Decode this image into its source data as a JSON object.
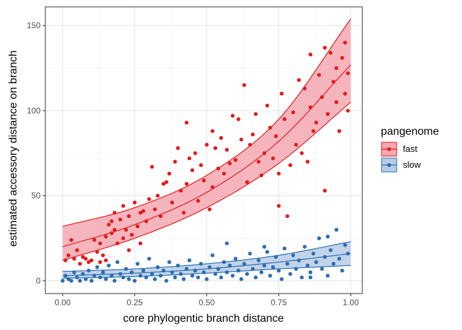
{
  "chart_data": {
    "type": "scatter",
    "title": "",
    "xlabel": "core phylogentic branch distance",
    "ylabel": "estimated accessory distance on branch",
    "xlim": [
      -0.06,
      1.04
    ],
    "ylim": [
      -7.5,
      161
    ],
    "xticks": [
      0.0,
      0.25,
      0.5,
      0.75,
      1.0
    ],
    "xtick_labels": [
      "0.00",
      "0.25",
      "0.50",
      "0.75",
      "1.00"
    ],
    "yticks": [
      0,
      50,
      100,
      150
    ],
    "ytick_labels": [
      "0",
      "50",
      "100",
      "150"
    ],
    "grid": true,
    "legend": {
      "title": "pangenome",
      "position": "right",
      "entries": [
        "fast",
        "slow"
      ]
    },
    "series": [
      {
        "name": "fast",
        "color": "#E31A1C",
        "fill": "#F4A8B0",
        "fit": {
          "x": [
            0.0,
            0.25,
            0.5,
            0.75,
            1.0
          ],
          "y": [
            20,
            33,
            52,
            82,
            127
          ]
        },
        "band_upper": {
          "x": [
            0.0,
            0.25,
            0.5,
            0.75,
            1.0
          ],
          "y": [
            32,
            43,
            62,
            95,
            154
          ]
        },
        "band_lower": {
          "x": [
            0.0,
            0.25,
            0.5,
            0.75,
            1.0
          ],
          "y": [
            12,
            25,
            43,
            69,
            105
          ]
        },
        "points": [
          [
            0.01,
            12
          ],
          [
            0.02,
            15
          ],
          [
            0.03,
            24
          ],
          [
            0.04,
            13
          ],
          [
            0.05,
            18
          ],
          [
            0.06,
            10
          ],
          [
            0.07,
            14
          ],
          [
            0.08,
            13
          ],
          [
            0.09,
            11
          ],
          [
            0.1,
            12
          ],
          [
            0.11,
            24
          ],
          [
            0.12,
            17
          ],
          [
            0.13,
            11
          ],
          [
            0.13,
            22
          ],
          [
            0.14,
            15
          ],
          [
            0.15,
            12
          ],
          [
            0.15,
            26
          ],
          [
            0.16,
            33
          ],
          [
            0.17,
            28
          ],
          [
            0.17,
            35
          ],
          [
            0.18,
            30
          ],
          [
            0.18,
            40
          ],
          [
            0.19,
            22
          ],
          [
            0.2,
            36
          ],
          [
            0.21,
            44
          ],
          [
            0.21,
            25
          ],
          [
            0.22,
            30
          ],
          [
            0.23,
            18
          ],
          [
            0.23,
            38
          ],
          [
            0.24,
            27
          ],
          [
            0.25,
            46
          ],
          [
            0.26,
            32
          ],
          [
            0.27,
            40
          ],
          [
            0.27,
            22
          ],
          [
            0.28,
            41
          ],
          [
            0.29,
            35
          ],
          [
            0.3,
            48
          ],
          [
            0.31,
            67
          ],
          [
            0.32,
            42
          ],
          [
            0.33,
            50
          ],
          [
            0.34,
            38
          ],
          [
            0.35,
            57
          ],
          [
            0.36,
            58
          ],
          [
            0.37,
            63
          ],
          [
            0.38,
            46
          ],
          [
            0.39,
            70
          ],
          [
            0.4,
            78
          ],
          [
            0.41,
            53
          ],
          [
            0.42,
            40
          ],
          [
            0.43,
            57
          ],
          [
            0.43,
            93
          ],
          [
            0.44,
            72
          ],
          [
            0.45,
            65
          ],
          [
            0.46,
            75
          ],
          [
            0.47,
            47
          ],
          [
            0.48,
            68
          ],
          [
            0.49,
            59
          ],
          [
            0.5,
            80
          ],
          [
            0.51,
            42
          ],
          [
            0.52,
            55
          ],
          [
            0.52,
            88
          ],
          [
            0.53,
            78
          ],
          [
            0.54,
            66
          ],
          [
            0.55,
            84
          ],
          [
            0.56,
            63
          ],
          [
            0.57,
            77
          ],
          [
            0.58,
            69
          ],
          [
            0.59,
            97
          ],
          [
            0.6,
            71
          ],
          [
            0.61,
            95
          ],
          [
            0.62,
            83
          ],
          [
            0.63,
            115
          ],
          [
            0.64,
            58
          ],
          [
            0.65,
            80
          ],
          [
            0.66,
            86
          ],
          [
            0.67,
            98
          ],
          [
            0.68,
            70
          ],
          [
            0.69,
            62
          ],
          [
            0.7,
            75
          ],
          [
            0.71,
            103
          ],
          [
            0.72,
            90
          ],
          [
            0.73,
            72
          ],
          [
            0.74,
            85
          ],
          [
            0.75,
            63
          ],
          [
            0.75,
            44
          ],
          [
            0.76,
            110
          ],
          [
            0.77,
            95
          ],
          [
            0.78,
            38
          ],
          [
            0.79,
            68
          ],
          [
            0.8,
            99
          ],
          [
            0.81,
            80
          ],
          [
            0.82,
            118
          ],
          [
            0.83,
            75
          ],
          [
            0.84,
            113
          ],
          [
            0.85,
            70
          ],
          [
            0.86,
            102
          ],
          [
            0.86,
            133
          ],
          [
            0.87,
            88
          ],
          [
            0.88,
            93
          ],
          [
            0.89,
            121
          ],
          [
            0.9,
            108
          ],
          [
            0.91,
            137
          ],
          [
            0.91,
            53
          ],
          [
            0.92,
            98
          ],
          [
            0.93,
            134
          ],
          [
            0.94,
            117
          ],
          [
            0.95,
            125
          ],
          [
            0.95,
            105
          ],
          [
            0.96,
            88
          ],
          [
            0.97,
            131
          ],
          [
            0.98,
            140
          ],
          [
            0.98,
            110
          ],
          [
            0.99,
            122
          ],
          [
            0.99,
            100
          ]
        ]
      },
      {
        "name": "slow",
        "color": "#2B6DB0",
        "fill": "#B7CDE6",
        "fit": {
          "x": [
            0.0,
            0.25,
            0.5,
            0.75,
            1.0
          ],
          "y": [
            3,
            4.5,
            7,
            11,
            16
          ]
        },
        "band_upper": {
          "x": [
            0.0,
            0.25,
            0.5,
            0.75,
            1.0
          ],
          "y": [
            5.5,
            7,
            10,
            15,
            23
          ]
        },
        "band_lower": {
          "x": [
            0.0,
            0.25,
            0.5,
            0.75,
            1.0
          ],
          "y": [
            1.5,
            2.5,
            4.5,
            7,
            9
          ]
        },
        "points": [
          [
            0.0,
            0
          ],
          [
            0.01,
            3
          ],
          [
            0.02,
            1
          ],
          [
            0.03,
            0
          ],
          [
            0.04,
            5
          ],
          [
            0.05,
            2
          ],
          [
            0.06,
            0
          ],
          [
            0.07,
            4
          ],
          [
            0.08,
            1
          ],
          [
            0.09,
            6
          ],
          [
            0.1,
            0
          ],
          [
            0.11,
            3
          ],
          [
            0.12,
            8
          ],
          [
            0.13,
            2
          ],
          [
            0.14,
            5
          ],
          [
            0.15,
            1
          ],
          [
            0.16,
            9
          ],
          [
            0.17,
            3
          ],
          [
            0.18,
            0
          ],
          [
            0.19,
            11
          ],
          [
            0.2,
            4
          ],
          [
            0.21,
            2
          ],
          [
            0.22,
            7
          ],
          [
            0.23,
            1
          ],
          [
            0.24,
            5
          ],
          [
            0.25,
            0
          ],
          [
            0.26,
            10
          ],
          [
            0.27,
            3
          ],
          [
            0.28,
            6
          ],
          [
            0.29,
            2
          ],
          [
            0.3,
            13
          ],
          [
            0.31,
            4
          ],
          [
            0.32,
            1
          ],
          [
            0.33,
            8
          ],
          [
            0.34,
            3
          ],
          [
            0.35,
            6
          ],
          [
            0.36,
            0
          ],
          [
            0.37,
            11
          ],
          [
            0.38,
            5
          ],
          [
            0.39,
            2
          ],
          [
            0.4,
            9
          ],
          [
            0.41,
            4
          ],
          [
            0.42,
            1
          ],
          [
            0.43,
            7
          ],
          [
            0.44,
            12
          ],
          [
            0.45,
            3
          ],
          [
            0.46,
            6
          ],
          [
            0.47,
            2
          ],
          [
            0.48,
            10
          ],
          [
            0.49,
            5
          ],
          [
            0.5,
            1
          ],
          [
            0.51,
            8
          ],
          [
            0.52,
            15
          ],
          [
            0.53,
            4
          ],
          [
            0.54,
            7
          ],
          [
            0.55,
            2
          ],
          [
            0.56,
            11
          ],
          [
            0.57,
            5
          ],
          [
            0.58,
            9
          ],
          [
            0.59,
            3
          ],
          [
            0.6,
            13
          ],
          [
            0.61,
            6
          ],
          [
            0.62,
            1
          ],
          [
            0.63,
            10
          ],
          [
            0.64,
            4
          ],
          [
            0.65,
            16
          ],
          [
            0.66,
            7
          ],
          [
            0.67,
            2
          ],
          [
            0.68,
            12
          ],
          [
            0.69,
            5
          ],
          [
            0.7,
            9
          ],
          [
            0.71,
            17
          ],
          [
            0.72,
            3
          ],
          [
            0.73,
            8
          ],
          [
            0.74,
            14
          ],
          [
            0.75,
            6
          ],
          [
            0.76,
            1
          ],
          [
            0.77,
            19
          ],
          [
            0.78,
            10
          ],
          [
            0.79,
            4
          ],
          [
            0.8,
            15
          ],
          [
            0.81,
            7
          ],
          [
            0.82,
            12
          ],
          [
            0.83,
            2
          ],
          [
            0.84,
            20
          ],
          [
            0.85,
            9
          ],
          [
            0.86,
            5
          ],
          [
            0.87,
            16
          ],
          [
            0.88,
            11
          ],
          [
            0.89,
            25
          ],
          [
            0.9,
            7
          ],
          [
            0.91,
            14
          ],
          [
            0.92,
            3
          ],
          [
            0.93,
            18
          ],
          [
            0.94,
            10
          ],
          [
            0.95,
            30
          ],
          [
            0.96,
            13
          ],
          [
            0.97,
            6
          ],
          [
            0.98,
            21
          ],
          [
            0.99,
            16
          ],
          [
            0.92,
            26
          ],
          [
            0.7,
            20
          ],
          [
            0.57,
            22
          ],
          [
            0.86,
            2
          ]
        ]
      }
    ]
  }
}
